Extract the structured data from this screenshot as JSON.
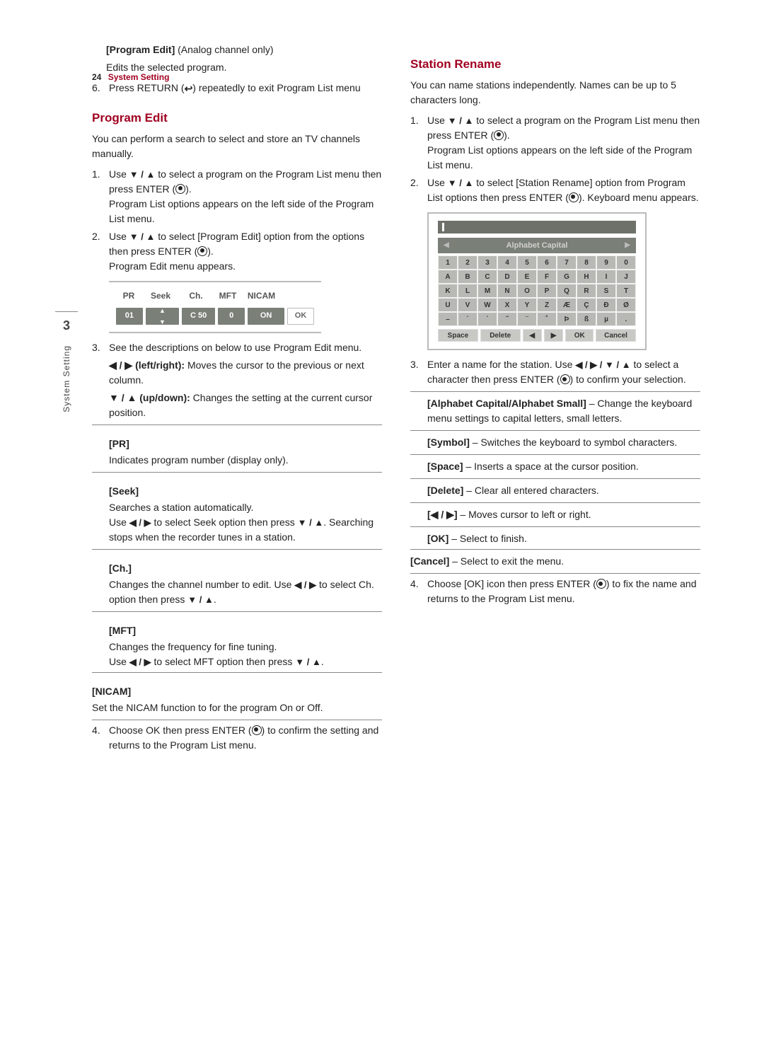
{
  "header": {
    "page_num": "24",
    "section": "System Setting"
  },
  "side_tab": {
    "num": "3",
    "label": "System Setting"
  },
  "left": {
    "prog_edit_label": "[Program Edit]",
    "prog_edit_note": " (Analog channel only)",
    "prog_edit_desc": "Edits the selected program.",
    "step6_n": "6.",
    "step6_a": "Press RETURN (",
    "step6_b": ") repeatedly to exit Program List menu",
    "h_program_edit": "Program Edit",
    "pe_intro": "You can perform a search to select and store an TV channels manually.",
    "pe1_n": "1.",
    "pe1_a": "Use ",
    "pe1_arrows": "▼ / ▲",
    "pe1_b": " to select a program on the Program List menu then press ENTER (",
    "pe1_c": ").",
    "pe1_d": "Program List options appears on the left side of the Program List menu.",
    "pe2_n": "2.",
    "pe2_a": "Use ",
    "pe2_arrows": "▼ / ▲",
    "pe2_b": " to select [Program Edit] option from the options then press ENTER (",
    "pe2_c": ").",
    "pe2_d": "Program Edit menu appears.",
    "fig_hdr": {
      "c1": "PR",
      "c2": "Seek",
      "c3": "Ch.",
      "c4": "MFT",
      "c5": "NICAM",
      "c6": ""
    },
    "fig_row": {
      "c1": "01",
      "c2a": "▲",
      "c2b": "▼",
      "c3": "C 50",
      "c4": "0",
      "c5": "ON",
      "c6": "OK"
    },
    "pe3_n": "3.",
    "pe3": "See the descriptions on below to use Program Edit menu.",
    "lr_bold": "◀ / ▶ (left/right):",
    "lr_txt": " Moves the cursor to the previous or next column.",
    "ud_bold": "▼ / ▲ (up/down):",
    "ud_txt": " Changes the setting at the current cursor position.",
    "pr_h": "[PR]",
    "pr_t": "Indicates program number (display only).",
    "seek_h": "[Seek]",
    "seek_t1": "Searches a station automatically.",
    "seek_t2a": "Use ",
    "seek_t2_arr1": "◀ / ▶",
    "seek_t2b": " to select Seek option then press ",
    "seek_t2_arr2": "▼ / ▲",
    "seek_t2c": ". Searching stops when the recorder tunes in a station.",
    "ch_h": "[Ch.]",
    "ch_t_a": "Changes the channel number to edit. Use ",
    "ch_arr1": "◀ / ▶",
    "ch_t_b": " to select Ch. option then press ",
    "ch_arr2": "▼ / ▲",
    "ch_t_c": ".",
    "mft_h": "[MFT]",
    "mft_t1": "Changes the frequency for fine tuning.",
    "mft_t2a": "Use ",
    "mft_arr1": "◀ / ▶",
    "mft_t2b": " to select MFT option then press ",
    "mft_arr2": "▼ / ▲",
    "mft_t2c": ".",
    "nicam_h": "[NICAM]",
    "nicam_t": "Set the NICAM function to for the program On or Off.",
    "pe4_n": "4.",
    "pe4_a": "Choose OK then press ENTER (",
    "pe4_b": ") to confirm the setting and returns to the Program List menu."
  },
  "right": {
    "h_station": "Station Rename",
    "sr_intro": "You can name stations independently. Names can be up to 5 characters long.",
    "sr1_n": "1.",
    "sr1_a": "Use ",
    "sr1_arr": "▼ / ▲",
    "sr1_b": " to select a program on the Program List menu then press ENTER (",
    "sr1_c": ").",
    "sr1_d": "Program List options appears on the left side of the Program List menu.",
    "sr2_n": "2.",
    "sr2_a": "Use ",
    "sr2_arr": "▼ / ▲",
    "sr2_b": " to select [Station Rename] option from Program List options then press ENTER (",
    "sr2_c": "). Keyboard menu appears.",
    "kb_title": "Alphabet Capital",
    "kb_rows": [
      [
        "1",
        "2",
        "3",
        "4",
        "5",
        "6",
        "7",
        "8",
        "9",
        "0"
      ],
      [
        "A",
        "B",
        "C",
        "D",
        "E",
        "F",
        "G",
        "H",
        "I",
        "J"
      ],
      [
        "K",
        "L",
        "M",
        "N",
        "O",
        "P",
        "Q",
        "R",
        "S",
        "T"
      ],
      [
        "U",
        "V",
        "W",
        "X",
        "Y",
        "Z",
        "Æ",
        "Ç",
        "Đ",
        "Ø"
      ],
      [
        "–",
        "´",
        "`",
        "˜",
        "¨",
        "˚",
        "Þ",
        "ß",
        "µ",
        "."
      ]
    ],
    "kb_btns": [
      "Space",
      "Delete",
      "◀",
      "▶",
      "OK",
      "Cancel"
    ],
    "sr3_n": "3.",
    "sr3_a": "Enter a name for the station. Use ",
    "sr3_arr": "◀ / ▶ / ▼ / ▲",
    "sr3_b": " to select a character then press ENTER (",
    "sr3_c": ") to confirm your selection.",
    "alpha_bold": "[Alphabet Capital/Alphabet Small]",
    "alpha_t": " – Change the keyboard menu settings to capital letters, small letters.",
    "sym_bold": "[Symbol]",
    "sym_t": " – Switches the keyboard to symbol characters.",
    "space_bold": "[Space]",
    "space_t": " – Inserts a space at the cursor position.",
    "del_bold": "[Delete]",
    "del_t": " – Clear all entered characters.",
    "lr2_bold": "[◀ / ▶]",
    "lr2_t": " – Moves cursor to left or right.",
    "ok_bold": "[OK]",
    "ok_t": " – Select to finish.",
    "cancel_bold": "[Cancel]",
    "cancel_t": " – Select to exit the menu.",
    "sr4_n": "4.",
    "sr4_a": "Choose [OK] icon then press ENTER (",
    "sr4_b": ") to fix the name and returns to the Program List menu."
  }
}
